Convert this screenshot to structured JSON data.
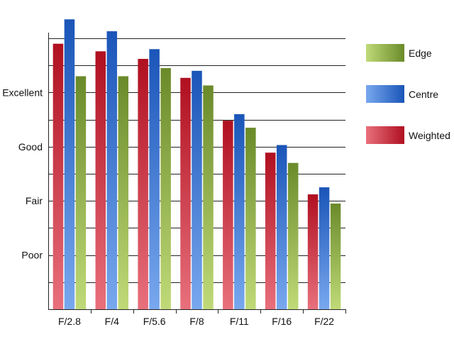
{
  "chart_data": {
    "type": "bar",
    "title": "",
    "xlabel": "",
    "ylabel": "",
    "categories": [
      "F/2.8",
      "F/4",
      "F/5.6",
      "F/8",
      "F/11",
      "F/16",
      "F/22"
    ],
    "y_tick_labels": [
      {
        "value": 1,
        "label": "Poor"
      },
      {
        "value": 2,
        "label": "Fair"
      },
      {
        "value": 3,
        "label": "Good"
      },
      {
        "value": 4,
        "label": "Excellent"
      }
    ],
    "ylim": [
      0,
      5
    ],
    "grid": true,
    "legend_position": "right",
    "series": [
      {
        "name": "Weighted",
        "values": [
          4.9,
          4.76,
          4.62,
          4.27,
          3.48,
          2.89,
          2.12
        ],
        "color_light": "#e8707c",
        "color_dark": "#b01020"
      },
      {
        "name": "Centre",
        "values": [
          5.35,
          5.13,
          4.8,
          4.4,
          3.6,
          3.03,
          2.25
        ],
        "color_light": "#78a8ee",
        "color_dark": "#1a55b8"
      },
      {
        "name": "Edge",
        "values": [
          4.3,
          4.3,
          4.45,
          4.13,
          3.35,
          2.7,
          1.95
        ],
        "color_light": "#c0da78",
        "color_dark": "#6a8a2a"
      }
    ],
    "legend_order": [
      "Edge",
      "Centre",
      "Weighted"
    ]
  }
}
